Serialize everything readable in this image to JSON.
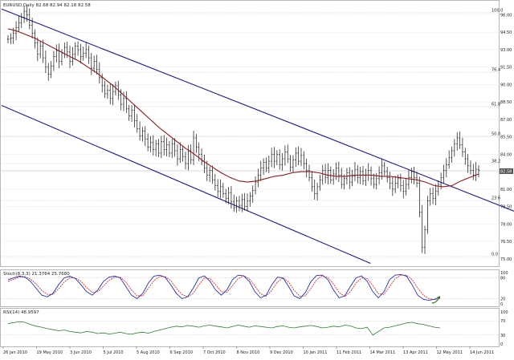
{
  "header": {
    "main": "EURUSD,Daily  82.68 82.94 82.18 82.58",
    "stoch": "Stoch(8,3,3) 21.3764 25.7680",
    "rsi": "RSI(14) 48.9597"
  },
  "last_price": "82.58",
  "fib_labels": [
    "100.0",
    "76.4",
    "61.8",
    "50.0",
    "38.2",
    "23.6",
    "0.0"
  ],
  "price_axis": [
    "96.00",
    "94.50",
    "93.00",
    "91.50",
    "90.00",
    "88.50",
    "87.00",
    "85.50",
    "84.00",
    "82.50",
    "81.00",
    "79.50",
    "78.00",
    "76.50",
    "75.00"
  ],
  "stoch_axis": [
    "100",
    "80",
    "20",
    "0"
  ],
  "rsi_axis": [
    "100",
    "70",
    "30",
    "0"
  ],
  "date_axis": [
    "26 Jan 2010",
    "19 May 2010",
    "3 Jun 2010",
    "5 Jul 2010",
    "5 Aug 2010",
    "6 Sep 2010",
    "7 Oct 2010",
    "8 Nov 2010",
    "9 Dec 2010",
    "10 Jan 2011",
    "11 Feb 2011",
    "14 Mar 2011",
    "13 Apr 2011",
    "12 May 2011",
    "14 Jun 2011"
  ],
  "colors": {
    "channel": "#1a1a8c",
    "ma": "#8b1a1a",
    "stoch_main": "#2233aa",
    "stoch_signal": "#cc3333",
    "rsi": "#2e7d2e",
    "price_line": "#c0c0c0"
  },
  "chart_data": {
    "type": "candlestick",
    "instrument": "EURUSD",
    "timeframe": "Daily",
    "ylim": [
      74.5,
      97.0
    ],
    "closes": [
      93.9,
      94.0,
      94.4,
      94.9,
      95.3,
      95.8,
      96.3,
      96.0,
      95.1,
      94.4,
      93.6,
      92.6,
      93.3,
      92.3,
      91.5,
      90.9,
      91.6,
      92.4,
      92.9,
      92.0,
      92.7,
      93.2,
      92.8,
      92.0,
      92.6,
      93.3,
      93.0,
      92.4,
      92.7,
      93.0,
      92.3,
      91.4,
      92.0,
      91.3,
      90.6,
      89.9,
      89.2,
      89.5,
      88.8,
      89.4,
      89.9,
      89.1,
      88.3,
      88.8,
      87.9,
      87.3,
      87.8,
      86.9,
      86.2,
      85.6,
      86.0,
      85.3,
      84.6,
      85.0,
      84.4,
      84.9,
      84.1,
      85.1,
      84.4,
      84.8,
      84.1,
      84.9,
      84.3,
      83.6,
      84.4,
      83.8,
      83.2,
      84.3,
      83.5,
      85.4,
      84.6,
      84.0,
      83.4,
      82.8,
      82.2,
      82.6,
      81.8,
      81.3,
      80.8,
      81.2,
      80.6,
      80.2,
      80.7,
      79.9,
      79.4,
      80.0,
      79.6,
      80.1,
      79.5,
      80.0,
      80.4,
      80.9,
      81.6,
      82.2,
      82.8,
      83.3,
      82.8,
      83.4,
      84.0,
      83.4,
      84.0,
      83.1,
      83.6,
      84.2,
      83.6,
      82.9,
      83.5,
      84.1,
      83.4,
      83.9,
      83.2,
      82.6,
      82.0,
      81.2,
      80.6,
      81.2,
      81.8,
      82.6,
      82.0,
      82.6,
      81.8,
      82.3,
      82.8,
      82.2,
      81.4,
      81.9,
      82.4,
      81.6,
      82.1,
      82.7,
      82.0,
      82.5,
      81.7,
      82.2,
      82.6,
      81.9,
      81.4,
      81.9,
      82.4,
      83.0,
      82.5,
      82.0,
      81.5,
      81.0,
      81.5,
      81.9,
      81.3,
      80.8,
      81.4,
      82.0,
      82.5,
      82.0,
      81.5,
      79.0,
      76.0,
      77.5,
      80.0,
      80.6,
      80.2,
      80.8,
      81.4,
      82.0,
      82.6,
      83.1,
      83.7,
      84.3,
      84.9,
      85.4,
      84.8,
      84.2,
      83.6,
      83.0,
      82.6,
      82.2,
      82.7,
      82.6
    ],
    "moving_average": [
      94.8,
      94.6,
      94.3,
      94.0,
      93.6,
      93.2,
      92.8,
      92.4,
      92.0,
      91.5,
      91.0,
      90.4,
      89.8,
      89.1,
      88.4,
      87.7,
      87.0,
      86.3,
      85.7,
      85.1,
      84.5,
      84.0,
      83.4,
      82.9,
      82.4,
      82.0,
      81.7,
      81.6,
      81.7,
      81.9,
      82.1,
      82.2,
      82.4,
      82.5,
      82.5,
      82.4,
      82.2,
      82.1,
      82.1,
      82.2,
      82.2,
      82.2,
      82.1,
      82.1,
      82.0,
      81.9,
      81.8,
      81.6,
      81.3,
      81.2,
      81.3,
      81.7,
      82.0,
      82.3
    ],
    "channel_upper": [
      [
        0,
        96.5
      ],
      [
        1,
        79.1
      ]
    ],
    "channel_lower": [
      [
        0,
        88.2
      ],
      [
        0.72,
        74.6
      ]
    ],
    "stoch_main": [
      75,
      80,
      85,
      82,
      70,
      50,
      30,
      25,
      35,
      60,
      80,
      85,
      78,
      60,
      40,
      30,
      45,
      70,
      82,
      85,
      80,
      55,
      30,
      20,
      35,
      65,
      85,
      88,
      82,
      60,
      35,
      20,
      25,
      50,
      80,
      86,
      70,
      45,
      30,
      45,
      75,
      88,
      86,
      70,
      40,
      22,
      30,
      60,
      82,
      80,
      55,
      28,
      20,
      38,
      70,
      87,
      88,
      75,
      45,
      22,
      28,
      55,
      80,
      86,
      70,
      40,
      22,
      40,
      75,
      88,
      90,
      85,
      60,
      30,
      18,
      15,
      18,
      25
    ],
    "stoch_signal": [
      70,
      76,
      82,
      83,
      77,
      62,
      44,
      32,
      32,
      48,
      68,
      80,
      80,
      70,
      52,
      38,
      40,
      56,
      73,
      82,
      82,
      68,
      45,
      28,
      28,
      50,
      72,
      84,
      84,
      72,
      50,
      32,
      25,
      35,
      60,
      80,
      78,
      60,
      40,
      38,
      58,
      78,
      86,
      78,
      56,
      34,
      27,
      44,
      68,
      80,
      68,
      44,
      27,
      28,
      50,
      75,
      86,
      81,
      62,
      38,
      26,
      40,
      65,
      80,
      78,
      58,
      34,
      32,
      55,
      78,
      88,
      88,
      75,
      50,
      30,
      20,
      17,
      20
    ],
    "rsi": [
      62,
      65,
      68,
      66,
      60,
      55,
      52,
      48,
      45,
      42,
      44,
      40,
      38,
      36,
      40,
      38,
      34,
      36,
      33,
      35,
      38,
      34,
      32,
      36,
      38,
      35,
      40,
      44,
      48,
      52,
      55,
      53,
      57,
      55,
      52,
      56,
      58,
      55,
      53,
      50,
      54,
      58,
      55,
      52,
      56,
      54,
      52,
      50,
      54,
      56,
      52,
      50,
      53,
      55,
      57,
      54,
      50,
      52,
      55,
      53,
      58,
      56,
      50,
      48,
      52,
      30,
      40,
      50,
      52,
      56,
      60,
      64,
      66,
      62,
      60,
      56,
      52,
      50
    ]
  }
}
